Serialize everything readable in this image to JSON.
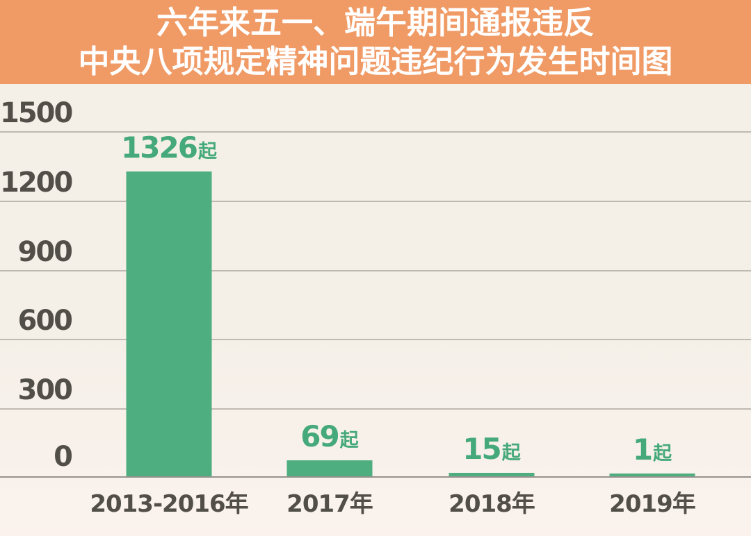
{
  "header": {
    "title_line1": "六年来五一、端午期间通报违反",
    "title_line2": "中央八项规定精神问题违纪行为发生时间图"
  },
  "colors": {
    "banner_bg": "#F09A65",
    "title_text": "#FFFFFF",
    "chart_bg_top": "#F4F0E8",
    "chart_bg_bottom": "#FBF2ED",
    "bar": "#4FAE80",
    "value_label": "#45A97B",
    "axis_text": "#524F49",
    "gridline": "#8F8D86"
  },
  "chart_data": {
    "type": "bar",
    "title": "六年来五一、端午期间通报违反中央八项规定精神问题违纪行为发生时间图",
    "categories": [
      "2013-2016年",
      "2017年",
      "2018年",
      "2019年"
    ],
    "values": [
      1326,
      69,
      15,
      1
    ],
    "unit": "起",
    "value_labels": [
      "1326起",
      "69起",
      "15起",
      "1起"
    ],
    "yticks": [
      "1500",
      "1200",
      "900",
      "600",
      "300",
      "0"
    ],
    "ylim": [
      0,
      1500
    ],
    "grid": true,
    "legend": "none",
    "xlabel": "",
    "ylabel": ""
  }
}
